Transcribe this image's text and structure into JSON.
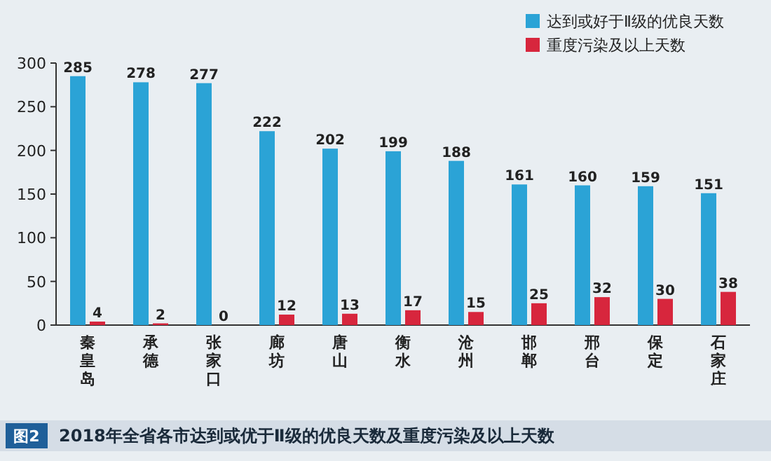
{
  "chart_data": {
    "type": "bar",
    "title": "2018年全省各市达到或优于Ⅱ级的优良天数及重度污染及以上天数",
    "annotations": [
      "图2"
    ],
    "categories": [
      "秦皇岛",
      "承德",
      "张家口",
      "廊坊",
      "唐山",
      "衡水",
      "沧州",
      "邯郸",
      "邢台",
      "保定",
      "石家庄"
    ],
    "series": [
      {
        "name": "达到或好于Ⅱ级的优良天数",
        "color": "#2ba3d6",
        "values": [
          285,
          278,
          277,
          222,
          202,
          199,
          188,
          161,
          160,
          159,
          151
        ]
      },
      {
        "name": "重度污染及以上天数",
        "color": "#d7263d",
        "values": [
          4,
          2,
          0,
          12,
          13,
          17,
          15,
          25,
          32,
          30,
          38
        ]
      }
    ],
    "ylim": [
      0,
      300
    ],
    "yticks": [
      0,
      50,
      100,
      150,
      200,
      250,
      300
    ],
    "data_labels": true,
    "legend": "top right",
    "grid": false
  }
}
